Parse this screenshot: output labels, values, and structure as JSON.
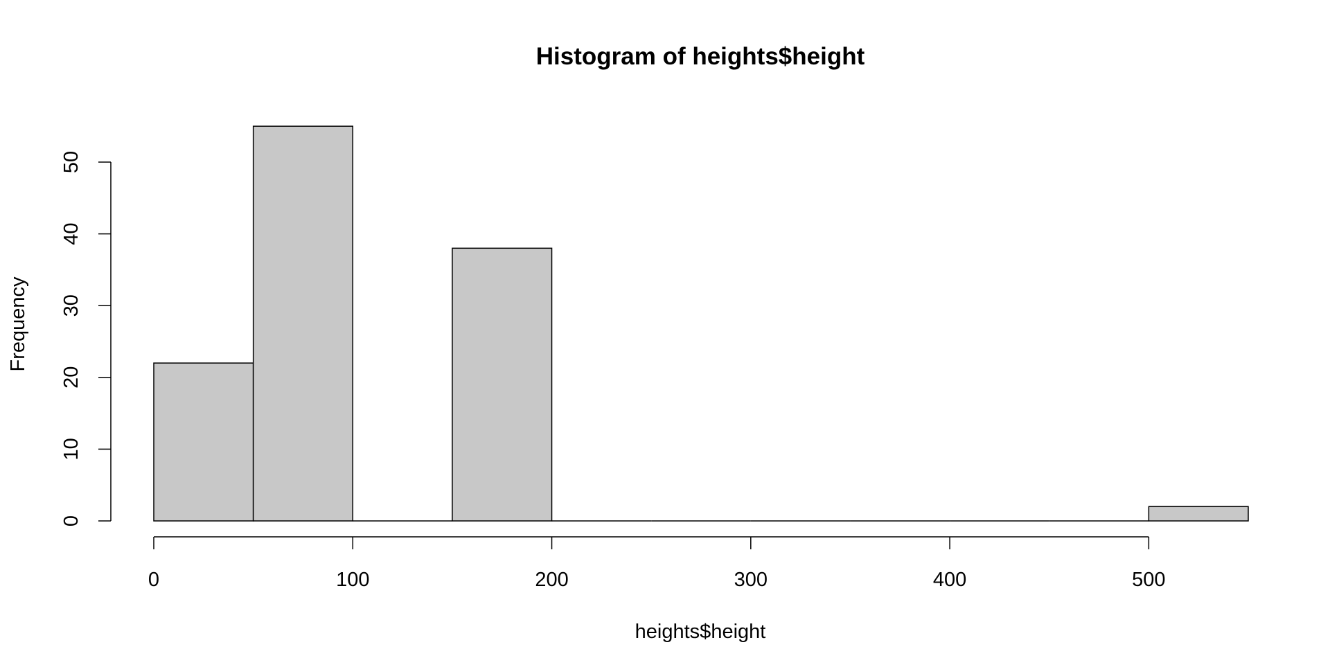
{
  "chart_data": {
    "type": "bar",
    "title": "Histogram of heights$height",
    "xlabel": "heights$height",
    "ylabel": "Frequency",
    "bin_edges": [
      0,
      50,
      100,
      150,
      200,
      250,
      300,
      350,
      400,
      450,
      500,
      550
    ],
    "counts": [
      22,
      55,
      0,
      38,
      0,
      0,
      0,
      0,
      0,
      0,
      2
    ],
    "x_ticks": [
      "0",
      "100",
      "200",
      "300",
      "400",
      "500"
    ],
    "y_ticks": [
      "0",
      "10",
      "20",
      "30",
      "40",
      "50"
    ],
    "xlim": [
      0,
      550
    ],
    "ylim": [
      0,
      55
    ],
    "grid": false,
    "legend": "none",
    "colors": {
      "bar_fill": "#c8c8c8",
      "bar_stroke": "#000000"
    }
  }
}
